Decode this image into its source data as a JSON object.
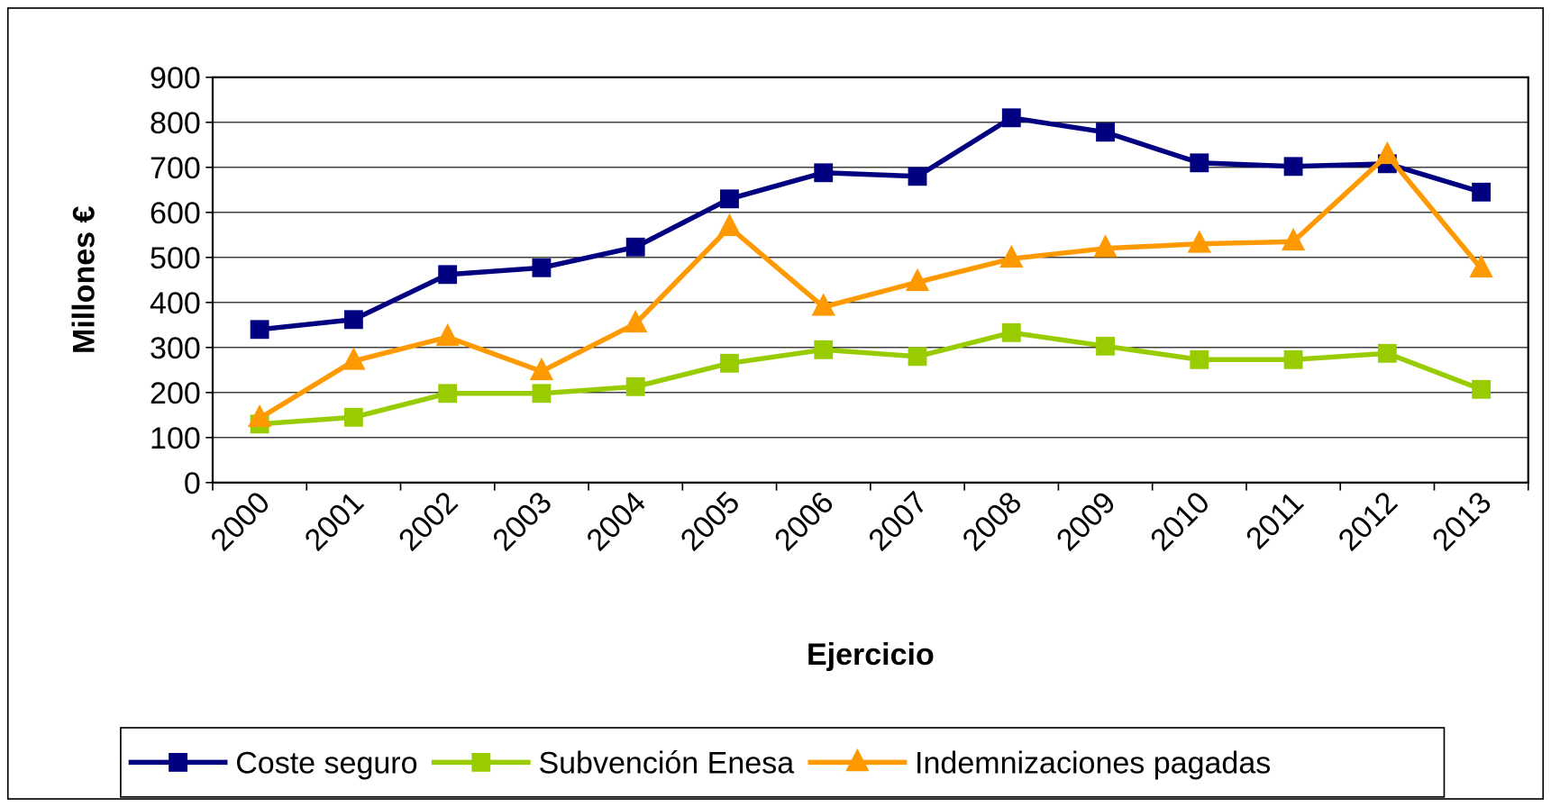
{
  "chart_data": {
    "type": "line",
    "x_label": "Ejercicio",
    "y_label": "Millones €",
    "categories": [
      "2000",
      "2001",
      "2002",
      "2003",
      "2004",
      "2005",
      "2006",
      "2007",
      "2008",
      "2009",
      "2010",
      "2011",
      "2012",
      "2013"
    ],
    "series": [
      {
        "name": "Coste seguro",
        "color": "#000080",
        "marker": "square",
        "values": [
          340,
          362,
          462,
          477,
          523,
          630,
          688,
          680,
          810,
          778,
          710,
          702,
          708,
          645
        ]
      },
      {
        "name": "Subvención Enesa",
        "color": "#99cc00",
        "marker": "square",
        "values": [
          130,
          145,
          198,
          198,
          213,
          265,
          295,
          280,
          333,
          303,
          273,
          273,
          287,
          207
        ]
      },
      {
        "name": "Indemnizaciones pagadas",
        "color": "#ff9900",
        "marker": "triangle",
        "values": [
          143,
          270,
          323,
          247,
          353,
          567,
          390,
          445,
          497,
          520,
          530,
          535,
          727,
          475
        ]
      }
    ],
    "ylim": [
      0,
      900
    ],
    "yticks": [
      0,
      100,
      200,
      300,
      400,
      500,
      600,
      700,
      800,
      900
    ],
    "grid": true,
    "legend": "bottom"
  }
}
